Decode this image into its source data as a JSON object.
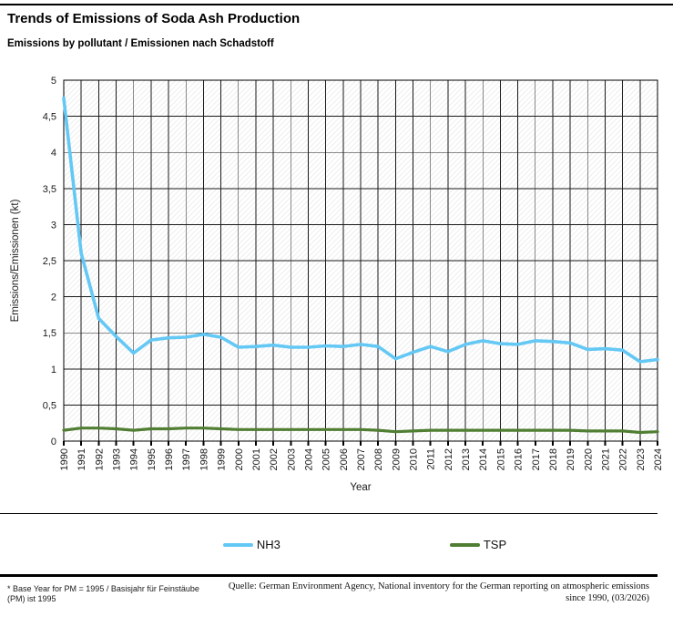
{
  "header": {
    "title": "Trends of Emissions of Soda Ash Production",
    "subtitle": "Emissions by pollutant / Emissionen nach Schadstoff"
  },
  "chart_data": {
    "type": "line",
    "x": [
      1990,
      1991,
      1992,
      1993,
      1994,
      1995,
      1996,
      1997,
      1998,
      1999,
      2000,
      2001,
      2002,
      2003,
      2004,
      2005,
      2006,
      2007,
      2008,
      2009,
      2010,
      2011,
      2012,
      2013,
      2014,
      2015,
      2016,
      2017,
      2018,
      2019,
      2020,
      2021,
      2022,
      2023,
      2024
    ],
    "series": [
      {
        "name": "NH3",
        "color": "#64c8f5",
        "values": [
          4.75,
          2.6,
          1.7,
          1.45,
          1.22,
          1.4,
          1.43,
          1.44,
          1.48,
          1.44,
          1.3,
          1.31,
          1.33,
          1.3,
          1.3,
          1.32,
          1.31,
          1.34,
          1.31,
          1.14,
          1.23,
          1.31,
          1.24,
          1.34,
          1.39,
          1.35,
          1.34,
          1.39,
          1.38,
          1.36,
          1.27,
          1.28,
          1.26,
          1.1,
          1.13
        ]
      },
      {
        "name": "TSP",
        "color": "#507e32",
        "values": [
          0.15,
          0.18,
          0.18,
          0.17,
          0.15,
          0.17,
          0.17,
          0.18,
          0.18,
          0.17,
          0.16,
          0.16,
          0.16,
          0.16,
          0.16,
          0.16,
          0.16,
          0.16,
          0.15,
          0.13,
          0.14,
          0.15,
          0.15,
          0.15,
          0.15,
          0.15,
          0.15,
          0.15,
          0.15,
          0.15,
          0.14,
          0.14,
          0.14,
          0.12,
          0.13
        ]
      }
    ],
    "xlabel": "Year",
    "ylabel": "Emissions/Emissionen (kt)",
    "ylim": [
      0,
      5
    ],
    "ytick_labels": [
      "0",
      "0,5",
      "1",
      "1,5",
      "2",
      "2,5",
      "3",
      "3,5",
      "4",
      "4,5",
      "5"
    ],
    "grid": true,
    "background": "hatched",
    "legend_position": "bottom"
  },
  "legend": {
    "items": [
      {
        "label": "NH3",
        "color": "#64c8f5"
      },
      {
        "label": "TSP",
        "color": "#507e32"
      }
    ]
  },
  "footer": {
    "note_line1": "* Base Year for PM = 1995 / Basisjahr für Feinstäube",
    "note_line2": "(PM) ist 1995",
    "source_line1": "Quelle: German Environment Agency, National inventory for the German reporting on atmospheric emissions",
    "source_line2": "since 1990, (03/2026)"
  },
  "colors": {
    "grid": "#1a1a1a",
    "hatch": "#e7e7e7",
    "rules": "#000000"
  }
}
